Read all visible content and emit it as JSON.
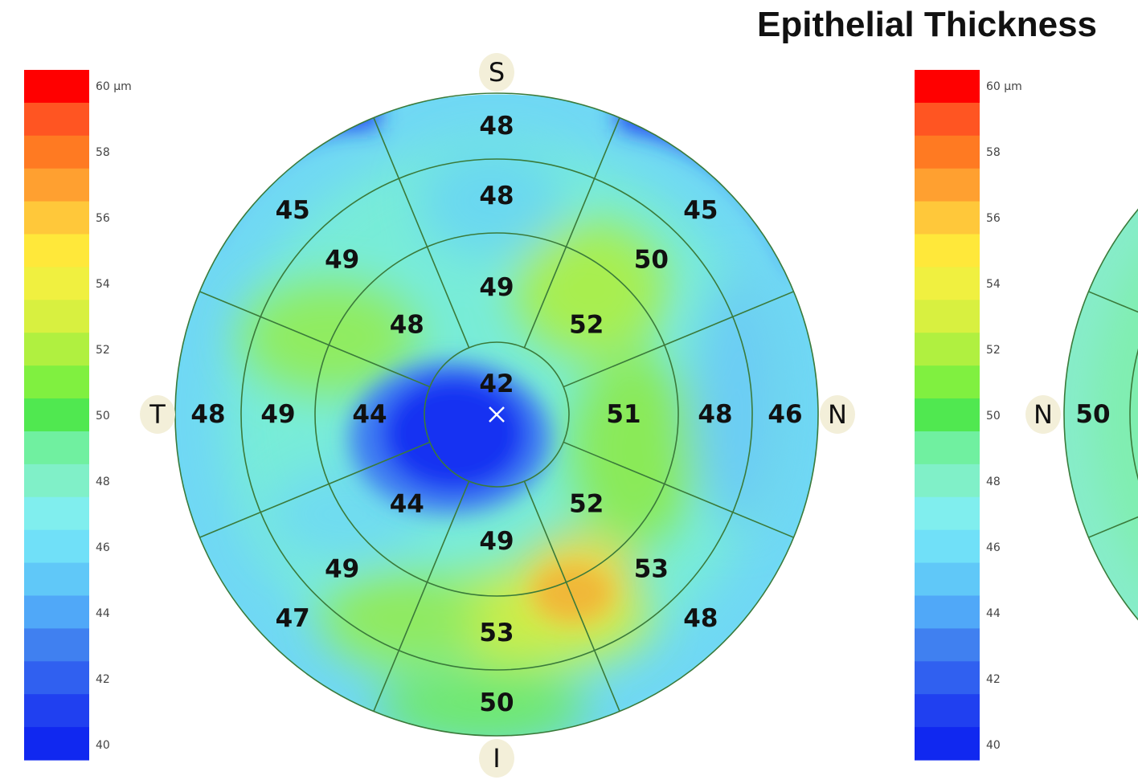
{
  "title": "Epithelial Thickness",
  "chart_data": [
    {
      "type": "heatmap",
      "title": "Epithelial Thickness",
      "colorbar": {
        "unit": "µm",
        "range": [
          40,
          60
        ],
        "tick_labels": [
          "60 µm",
          "58",
          "56",
          "54",
          "52",
          "50",
          "48",
          "46",
          "44",
          "42",
          "40"
        ],
        "colors": [
          "#ff0000",
          "#ff5522",
          "#ff7a22",
          "#ffa030",
          "#ffc83a",
          "#ffe83a",
          "#f0f040",
          "#d8f040",
          "#b0f040",
          "#80f040",
          "#50e850",
          "#70f0a0",
          "#80f0c8",
          "#80eeee",
          "#70e0f8",
          "#60c8f8",
          "#50a8f8",
          "#4080f0",
          "#3060f0",
          "#2040f0",
          "#1028f0"
        ]
      },
      "orientation_labels": {
        "superior": "S",
        "inferior": "I",
        "temporal": "T",
        "nasal": "N"
      },
      "zones": {
        "central": 42,
        "paracentral": {
          "superior": 49,
          "superior_temporal": 48,
          "temporal": 44,
          "inferior_temporal": 44,
          "inferior": 49,
          "inferior_nasal": 52,
          "nasal": 51,
          "superior_nasal": 52
        },
        "midperipheral": {
          "superior": 48,
          "superior_temporal": 49,
          "temporal": 49,
          "inferior_temporal": 49,
          "inferior": 53,
          "inferior_nasal": 53,
          "nasal": 48,
          "superior_nasal": 50
        },
        "peripheral": {
          "superior": 48,
          "superior_temporal": 45,
          "temporal": 48,
          "inferior_temporal": 47,
          "inferior": 50,
          "inferior_nasal": 48,
          "nasal": 46,
          "superior_nasal": 45
        }
      }
    },
    {
      "type": "heatmap",
      "colorbar": {
        "unit": "µm",
        "range": [
          40,
          60
        ],
        "tick_labels": [
          "60 µm",
          "58",
          "56",
          "54",
          "52",
          "50",
          "48",
          "46",
          "44",
          "42",
          "40"
        ]
      },
      "orientation_labels": {
        "nasal": "N"
      },
      "zones": {
        "peripheral": {
          "nasal": 50
        }
      }
    }
  ]
}
